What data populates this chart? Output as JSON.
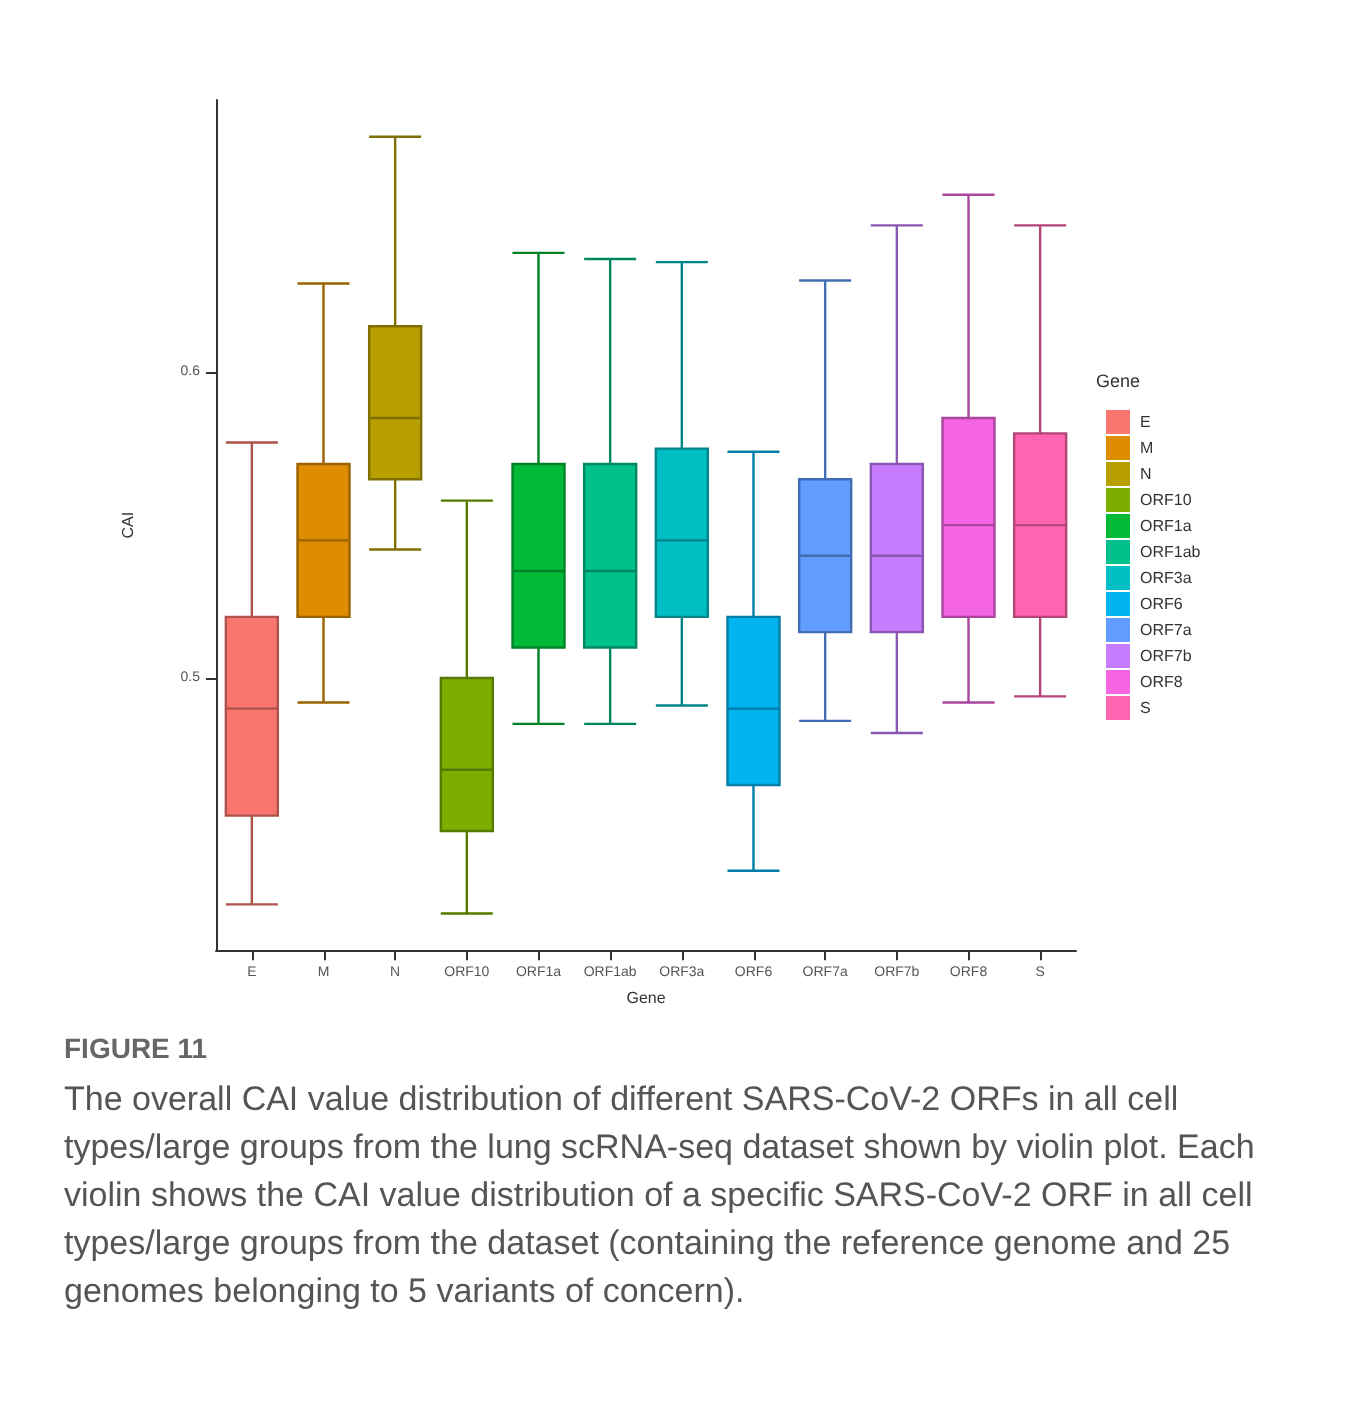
{
  "chart_data": {
    "type": "box",
    "title": "FIGURE 11",
    "annotations": [
      "The overall CAI value distribution of different SARS-CoV-2 ORFs in all cell types/large groups from the lung scRNA-seq dataset shown by violin plot. Each violin shows the CAI value distribution of a specific SARS-CoV-2 ORF in all cell types/large groups from the dataset (containing the reference genome and 25 genomes belonging to 5 variants of concern)."
    ],
    "xlabel": "Gene",
    "ylabel": "CAI",
    "legend_title": "Gene",
    "legend": "right",
    "grid": false,
    "categories": [
      "E",
      "M",
      "N",
      "ORF10",
      "ORF1a",
      "ORF1ab",
      "ORF3a",
      "ORF6",
      "ORF7a",
      "ORF7b",
      "ORF8",
      "S"
    ],
    "series": [
      {
        "name": "E",
        "color": "#f8766d",
        "boxes": [
          {
            "low": 0.426,
            "q1": 0.455,
            "median": 0.49,
            "q3": 0.52,
            "high": 0.577
          },
          null,
          null,
          null,
          null,
          null,
          null,
          null,
          null,
          null,
          null,
          null
        ]
      },
      {
        "name": "M",
        "color": "#de8c00",
        "boxes": [
          null,
          {
            "low": 0.492,
            "q1": 0.52,
            "median": 0.545,
            "q3": 0.57,
            "high": 0.629
          },
          null,
          null,
          null,
          null,
          null,
          null,
          null,
          null,
          null,
          null
        ]
      },
      {
        "name": "N",
        "color": "#b79f00",
        "boxes": [
          null,
          null,
          {
            "low": 0.542,
            "q1": 0.565,
            "median": 0.585,
            "q3": 0.615,
            "high": 0.677
          },
          null,
          null,
          null,
          null,
          null,
          null,
          null,
          null,
          null
        ]
      },
      {
        "name": "ORF10",
        "color": "#7cae00",
        "boxes": [
          null,
          null,
          null,
          {
            "low": 0.423,
            "q1": 0.45,
            "median": 0.47,
            "q3": 0.5,
            "high": 0.558
          },
          null,
          null,
          null,
          null,
          null,
          null,
          null,
          null
        ]
      },
      {
        "name": "ORF1a",
        "color": "#00ba38",
        "boxes": [
          null,
          null,
          null,
          null,
          {
            "low": 0.485,
            "q1": 0.51,
            "median": 0.535,
            "q3": 0.57,
            "high": 0.639
          },
          null,
          null,
          null,
          null,
          null,
          null,
          null
        ]
      },
      {
        "name": "ORF1ab",
        "color": "#00c08b",
        "boxes": [
          null,
          null,
          null,
          null,
          null,
          {
            "low": 0.485,
            "q1": 0.51,
            "median": 0.535,
            "q3": 0.57,
            "high": 0.637
          },
          null,
          null,
          null,
          null,
          null,
          null
        ]
      },
      {
        "name": "ORF3a",
        "color": "#00bfc4",
        "boxes": [
          null,
          null,
          null,
          null,
          null,
          null,
          {
            "low": 0.491,
            "q1": 0.52,
            "median": 0.545,
            "q3": 0.575,
            "high": 0.636
          },
          null,
          null,
          null,
          null,
          null
        ]
      },
      {
        "name": "ORF6",
        "color": "#00b4f0",
        "boxes": [
          null,
          null,
          null,
          null,
          null,
          null,
          null,
          {
            "low": 0.437,
            "q1": 0.465,
            "median": 0.49,
            "q3": 0.52,
            "high": 0.574
          },
          null,
          null,
          null,
          null
        ]
      },
      {
        "name": "ORF7a",
        "color": "#619cff",
        "boxes": [
          null,
          null,
          null,
          null,
          null,
          null,
          null,
          null,
          {
            "low": 0.486,
            "q1": 0.515,
            "median": 0.54,
            "q3": 0.565,
            "high": 0.63
          },
          null,
          null,
          null
        ]
      },
      {
        "name": "ORF7b",
        "color": "#c77cff",
        "boxes": [
          null,
          null,
          null,
          null,
          null,
          null,
          null,
          null,
          null,
          {
            "low": 0.482,
            "q1": 0.515,
            "median": 0.54,
            "q3": 0.57,
            "high": 0.648
          },
          null,
          null
        ]
      },
      {
        "name": "ORF8",
        "color": "#f564e3",
        "boxes": [
          null,
          null,
          null,
          null,
          null,
          null,
          null,
          null,
          null,
          null,
          {
            "low": 0.492,
            "q1": 0.52,
            "median": 0.55,
            "q3": 0.585,
            "high": 0.658
          },
          null
        ]
      },
      {
        "name": "S",
        "color": "#ff64b0",
        "boxes": [
          null,
          null,
          null,
          null,
          null,
          null,
          null,
          null,
          null,
          null,
          null,
          {
            "low": 0.494,
            "q1": 0.52,
            "median": 0.55,
            "q3": 0.58,
            "high": 0.648
          }
        ]
      }
    ],
    "ylim": [
      0.411,
      0.689
    ],
    "yticks": [
      0.5,
      0.6
    ]
  }
}
